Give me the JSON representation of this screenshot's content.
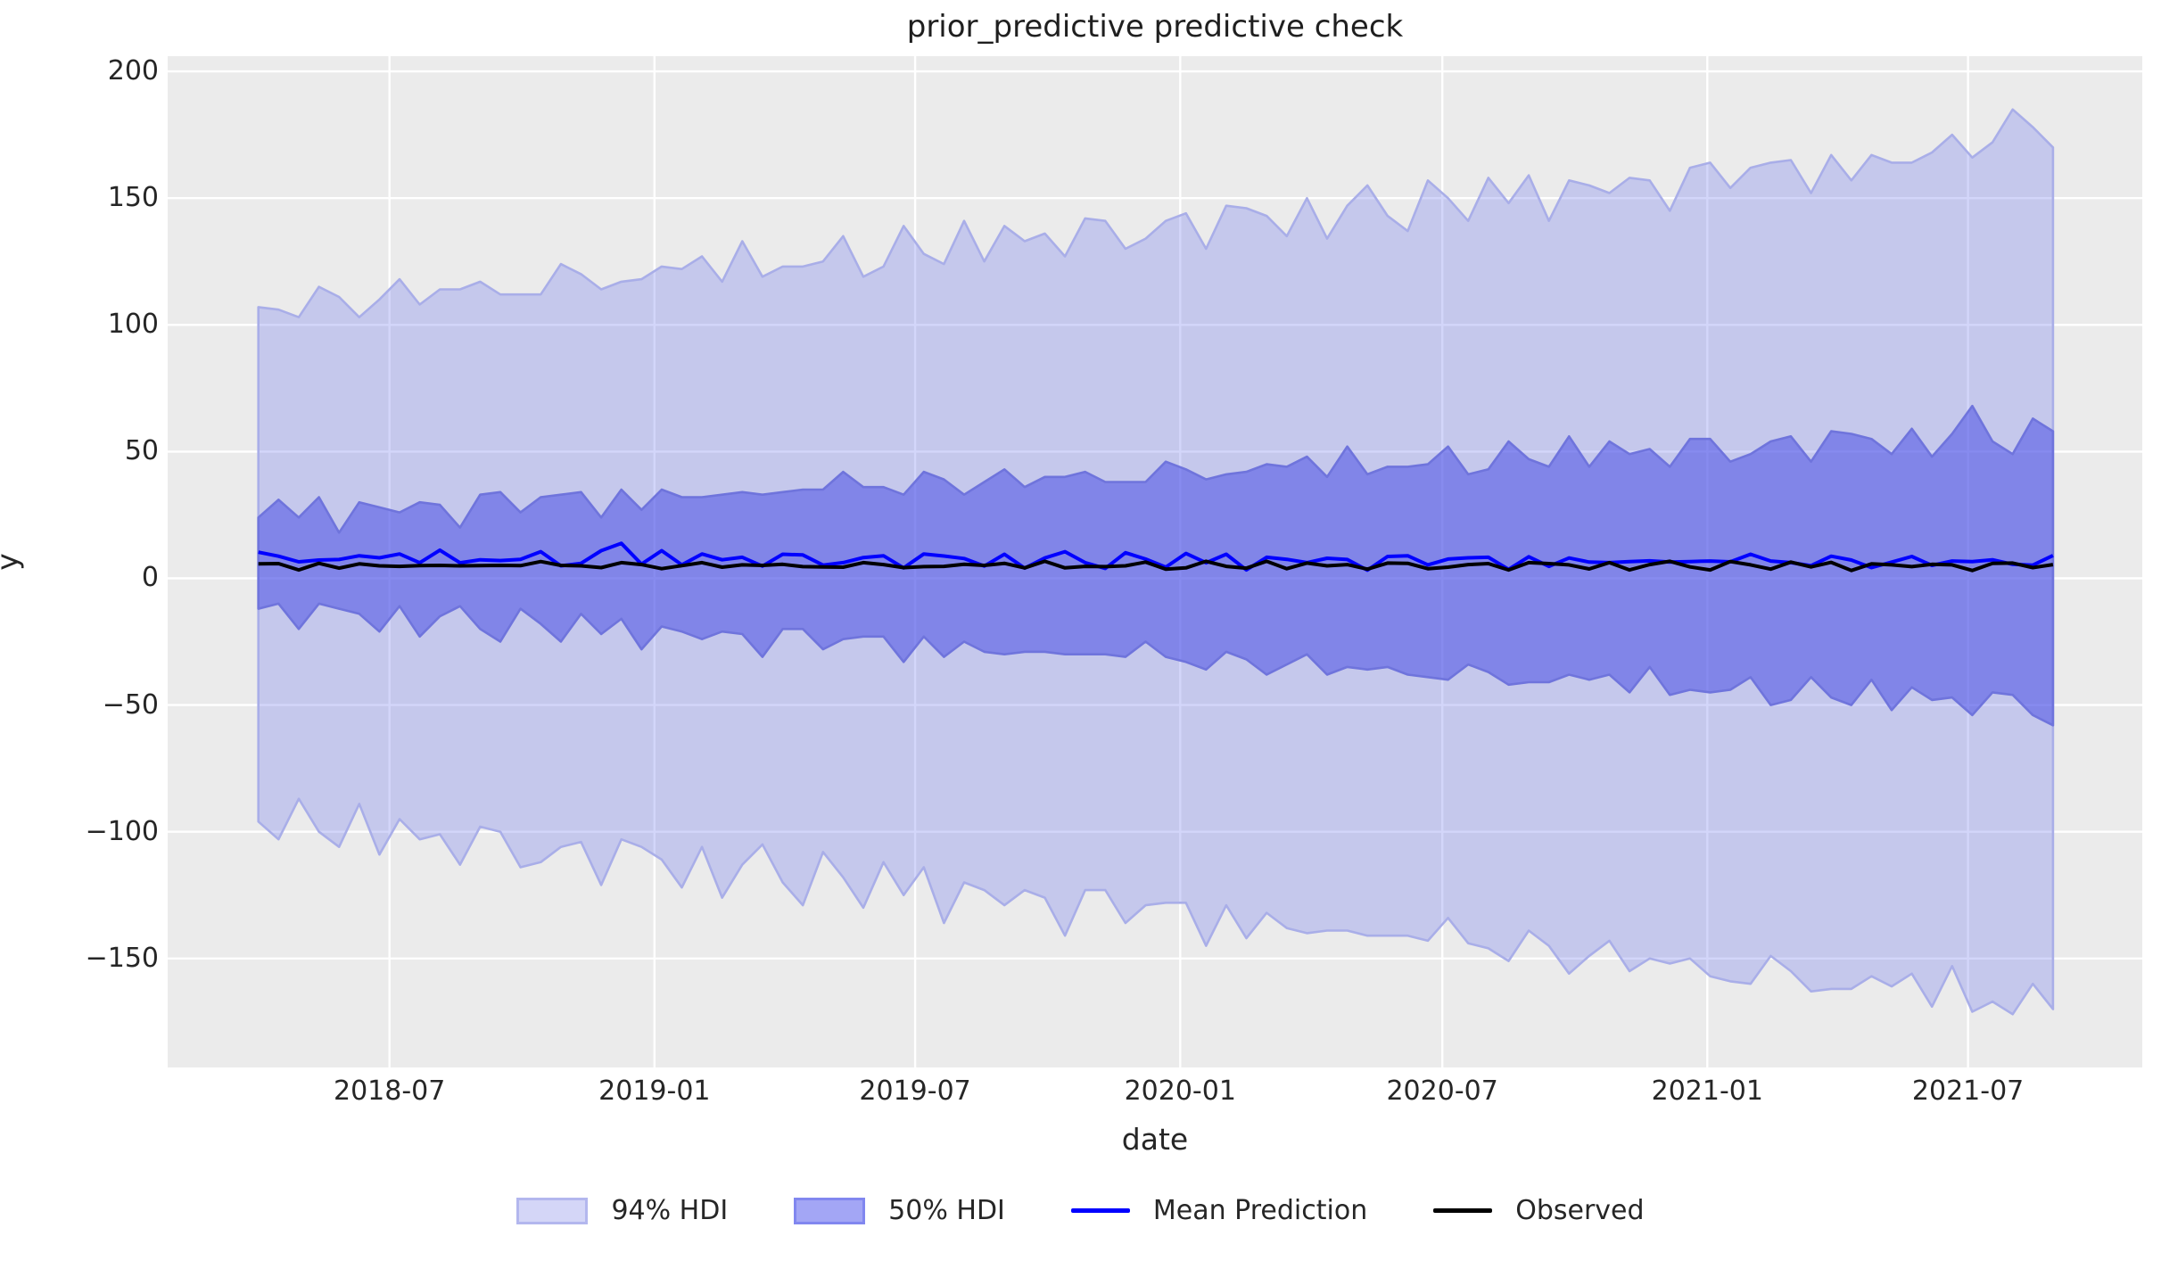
{
  "title": "prior_predictive predictive check",
  "axes": {
    "xlabel": "date",
    "ylabel": "y",
    "x_domain": [
      "2018-01-28",
      "2021-10-30"
    ],
    "y_domain": [
      -193,
      206
    ],
    "x_ticks": [
      {
        "date": "2018-07-01",
        "label": "2018-07"
      },
      {
        "date": "2019-01-01",
        "label": "2019-01"
      },
      {
        "date": "2019-07-01",
        "label": "2019-07"
      },
      {
        "date": "2020-01-01",
        "label": "2020-01"
      },
      {
        "date": "2020-07-01",
        "label": "2020-07"
      },
      {
        "date": "2021-01-01",
        "label": "2021-01"
      },
      {
        "date": "2021-07-01",
        "label": "2021-07"
      }
    ],
    "y_ticks": [
      {
        "value": 200,
        "label": "200"
      },
      {
        "value": 150,
        "label": "150"
      },
      {
        "value": 100,
        "label": "100"
      },
      {
        "value": 50,
        "label": "50"
      },
      {
        "value": 0,
        "label": "0"
      },
      {
        "value": -50,
        "label": "−50"
      },
      {
        "value": -100,
        "label": "−100"
      },
      {
        "value": -150,
        "label": "−150"
      }
    ],
    "grid": "on",
    "legend_position": "below-figure"
  },
  "legend": {
    "items": [
      {
        "label": "94% HDI",
        "type": "patch"
      },
      {
        "label": "50% HDI",
        "type": "patch"
      },
      {
        "label": "Mean Prediction",
        "type": "line"
      },
      {
        "label": "Observed",
        "type": "line"
      }
    ]
  },
  "colors": {
    "figure_bg": "#ffffff",
    "plot_bg": "#ebebeb",
    "grid": "#ffffff",
    "hdi94_fill": "rgba(110,120,240,0.30)",
    "hdi94_edge": "#a9aee8",
    "hdi50_fill": "rgba(72,78,230,0.55)",
    "hdi50_edge": "#6f74dc",
    "mean_line": "#0000ff",
    "observed_line": "#000000",
    "text": "#262626",
    "legend_swatch_94_fill": "#d4d6f7",
    "legend_swatch_94_edge": "#b3b7ee",
    "legend_swatch_50_fill": "#a3a6f5",
    "legend_swatch_50_edge": "#8187ef"
  },
  "chart_data": {
    "type": "area",
    "title": "prior_predictive predictive check",
    "xlabel": "date",
    "ylabel": "y",
    "x_start_date": "2018-04-01",
    "x_interval_days": 14,
    "n_points": 90,
    "x_end_date": "2021-08-29",
    "xlim": [
      "2018-01-28",
      "2021-10-30"
    ],
    "ylim": [
      -193,
      206
    ],
    "bands": [
      {
        "name": "94% HDI",
        "upper": [
          107,
          106,
          103,
          115,
          111,
          103,
          110,
          118,
          108,
          114,
          114,
          117,
          112,
          112,
          112,
          124,
          120,
          114,
          117,
          118,
          123,
          122,
          127,
          117,
          133,
          119,
          123,
          123,
          125,
          135,
          119,
          123,
          139,
          128,
          124,
          141,
          125,
          139,
          133,
          136,
          127,
          142,
          141,
          130,
          134,
          141,
          144,
          130,
          147,
          146,
          143,
          135,
          150,
          134,
          147,
          155,
          143,
          137,
          157,
          150,
          141,
          158,
          148,
          159,
          141,
          157,
          155,
          152,
          158,
          157,
          145,
          162,
          164,
          154,
          162,
          164,
          165,
          152,
          167,
          157,
          167,
          164,
          164,
          168,
          175,
          166,
          172,
          185,
          178,
          170
        ],
        "lower": [
          -96,
          -103,
          -87,
          -100,
          -106,
          -89,
          -109,
          -95,
          -103,
          -101,
          -113,
          -98,
          -100,
          -114,
          -112,
          -106,
          -104,
          -121,
          -103,
          -106,
          -111,
          -122,
          -106,
          -126,
          -113,
          -105,
          -120,
          -129,
          -108,
          -118,
          -130,
          -112,
          -125,
          -114,
          -136,
          -120,
          -123,
          -129,
          -123,
          -126,
          -141,
          -123,
          -123,
          -136,
          -129,
          -128,
          -128,
          -145,
          -129,
          -142,
          -132,
          -138,
          -140,
          -139,
          -139,
          -141,
          -141,
          -141,
          -143,
          -134,
          -144,
          -146,
          -151,
          -139,
          -145,
          -156,
          -149,
          -143,
          -155,
          -150,
          -152,
          -150,
          -157,
          -159,
          -160,
          -149,
          -155,
          -163,
          -162,
          -162,
          -157,
          -161,
          -156,
          -169,
          -153,
          -171,
          -167,
          -172,
          -160,
          -170
        ]
      },
      {
        "name": "50% HDI",
        "upper": [
          24,
          31,
          24,
          32,
          18,
          30,
          28,
          26,
          30,
          29,
          20,
          33,
          34,
          26,
          32,
          33,
          34,
          24,
          35,
          27,
          35,
          32,
          32,
          33,
          34,
          33,
          34,
          35,
          35,
          42,
          36,
          36,
          33,
          42,
          39,
          33,
          38,
          43,
          36,
          40,
          40,
          42,
          38,
          38,
          38,
          46,
          43,
          39,
          41,
          42,
          45,
          44,
          48,
          40,
          52,
          41,
          44,
          44,
          45,
          52,
          41,
          43,
          54,
          47,
          44,
          56,
          44,
          54,
          49,
          51,
          44,
          55,
          55,
          46,
          49,
          54,
          56,
          46,
          58,
          57,
          55,
          49,
          59,
          48,
          57,
          68,
          54,
          49,
          63,
          58
        ],
        "lower": [
          -12,
          -10,
          -20,
          -10,
          -12,
          -14,
          -21,
          -11,
          -23,
          -15,
          -11,
          -20,
          -25,
          -12,
          -18,
          -25,
          -14,
          -22,
          -16,
          -28,
          -19,
          -21,
          -24,
          -21,
          -22,
          -31,
          -20,
          -20,
          -28,
          -24,
          -23,
          -23,
          -33,
          -23,
          -31,
          -25,
          -29,
          -30,
          -29,
          -29,
          -30,
          -30,
          -30,
          -31,
          -25,
          -31,
          -33,
          -36,
          -29,
          -32,
          -38,
          -34,
          -30,
          -38,
          -35,
          -36,
          -35,
          -38,
          -39,
          -40,
          -34,
          -37,
          -42,
          -41,
          -41,
          -38,
          -40,
          -38,
          -45,
          -35,
          -46,
          -44,
          -45,
          -44,
          -39,
          -50,
          -48,
          -39,
          -47,
          -50,
          -40,
          -52,
          -43,
          -48,
          -47,
          -54,
          -45,
          -46,
          -54,
          -58
        ]
      }
    ],
    "lines": [
      {
        "name": "Mean Prediction",
        "values": [
          10.3,
          8.7,
          6.5,
          7.2,
          7.4,
          8.9,
          8.1,
          9.6,
          6.1,
          11.1,
          6.1,
          7.3,
          7.0,
          7.5,
          10.5,
          4.9,
          5.9,
          10.9,
          13.8,
          5.6,
          10.9,
          5.3,
          9.6,
          7.3,
          8.3,
          4.8,
          9.5,
          9.2,
          5.2,
          6.2,
          8.2,
          8.9,
          4.1,
          9.6,
          8.8,
          7.8,
          4.8,
          9.5,
          4.0,
          8.0,
          10.5,
          6.2,
          3.9,
          10.1,
          7.6,
          4.4,
          9.8,
          6.1,
          9.5,
          3.3,
          8.3,
          7.5,
          6.2,
          7.9,
          7.4,
          3.2,
          8.6,
          8.9,
          5.3,
          7.6,
          8.1,
          8.3,
          3.5,
          8.5,
          4.7,
          8.0,
          6.4,
          6.2,
          6.6,
          6.9,
          6.4,
          6.6,
          6.8,
          6.5,
          9.5,
          6.8,
          6.2,
          5.0,
          8.7,
          7.2,
          4.2,
          6.4,
          8.6,
          5.1,
          6.8,
          6.6,
          7.3,
          5.5,
          5.2,
          9.0
        ]
      },
      {
        "name": "Observed",
        "values": [
          5.7,
          5.8,
          3.3,
          5.9,
          4.0,
          5.7,
          4.9,
          4.7,
          5.0,
          5.1,
          4.9,
          5.0,
          5.1,
          5.0,
          6.6,
          5.1,
          4.9,
          4.2,
          6.2,
          5.4,
          3.8,
          5.0,
          6.2,
          4.4,
          5.3,
          5.1,
          5.5,
          4.6,
          4.5,
          4.4,
          6.2,
          5.4,
          4.2,
          4.6,
          4.7,
          5.5,
          5.1,
          5.9,
          4.1,
          6.7,
          4.1,
          4.7,
          4.6,
          4.9,
          6.4,
          3.6,
          4.1,
          6.7,
          4.7,
          4.0,
          6.7,
          3.8,
          6.0,
          4.9,
          5.4,
          3.6,
          6.0,
          5.9,
          3.8,
          4.4,
          5.4,
          5.8,
          3.3,
          6.2,
          5.8,
          5.3,
          3.7,
          6.2,
          3.3,
          5.4,
          6.7,
          4.5,
          3.3,
          6.6,
          5.3,
          3.6,
          6.4,
          4.5,
          6.3,
          3.1,
          5.7,
          5.3,
          4.6,
          5.5,
          5.3,
          3.1,
          5.9,
          6.0,
          4.2,
          5.4
        ]
      }
    ]
  }
}
